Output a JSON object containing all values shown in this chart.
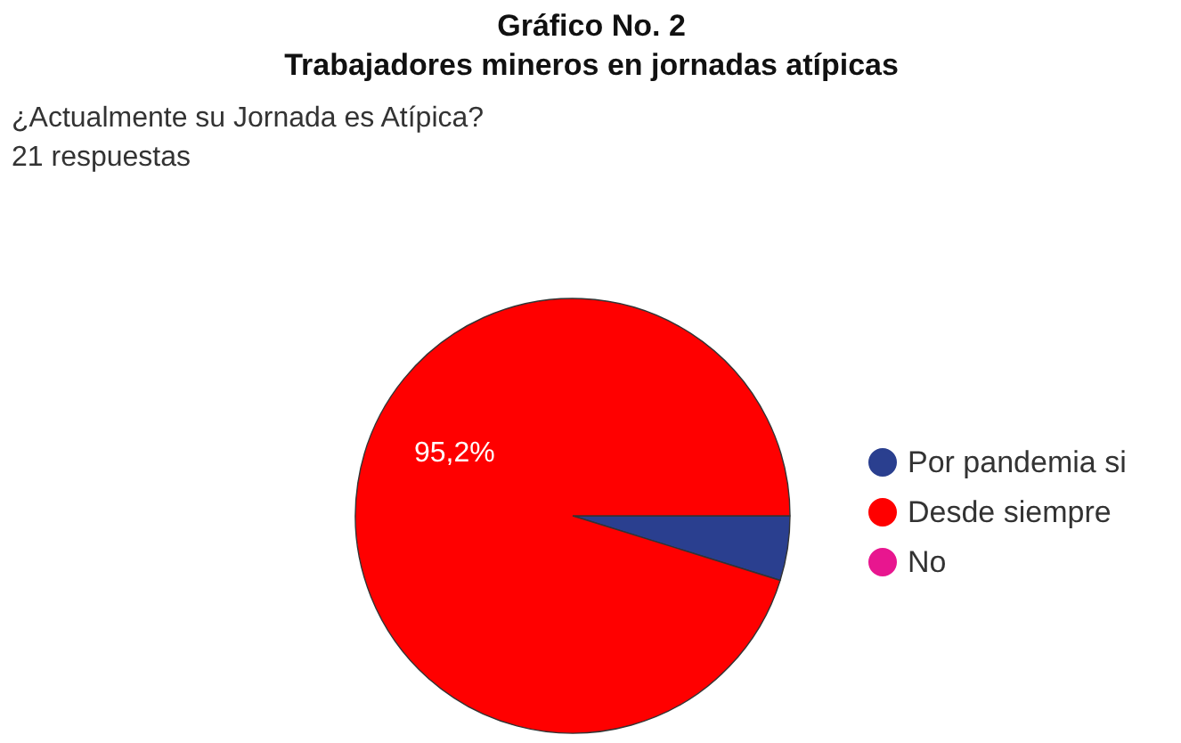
{
  "chart_data": {
    "type": "pie",
    "title": "Gráfico No. 2\nTrabajadores mineros en jornadas atípicas",
    "subtitle": "¿Actualmente su Jornada es Atípica?",
    "annotations": [
      "21 respuestas"
    ],
    "categories": [
      "Por pandemia si",
      "Desde siempre",
      "No"
    ],
    "values": [
      4.8,
      95.2,
      0
    ],
    "colors": [
      "#2a3f8f",
      "#ff0000",
      "#e8168f"
    ],
    "value_labels": [
      null,
      "95,2%",
      null
    ],
    "legend": "right"
  }
}
